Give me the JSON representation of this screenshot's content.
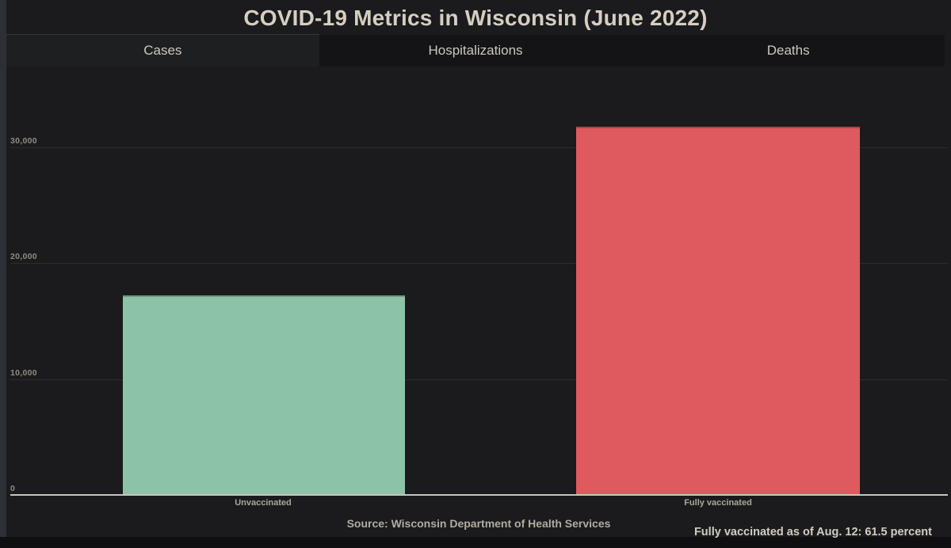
{
  "header": {
    "title": "COVID-19 Metrics in Wisconsin (June 2022)"
  },
  "tabs": {
    "items": [
      {
        "label": "Cases",
        "active": true
      },
      {
        "label": "Hospitalizations",
        "active": false
      },
      {
        "label": "Deaths",
        "active": false
      }
    ]
  },
  "chart_data": {
    "type": "bar",
    "title": "COVID-19 Metrics in Wisconsin (June 2022)",
    "active_metric": "Cases",
    "categories": [
      "Unvaccinated",
      "Fully vaccinated"
    ],
    "values": [
      17200,
      31800
    ],
    "bar_colors": [
      "#8cc3a7",
      "#de5a5e"
    ],
    "xlabel": "",
    "ylabel": "",
    "ylim": [
      0,
      36000
    ],
    "grid": true,
    "yticks": [
      {
        "value": 0,
        "label": "0"
      },
      {
        "value": 10000,
        "label": "10,000"
      },
      {
        "value": 20000,
        "label": "20,000"
      },
      {
        "value": 30000,
        "label": "30,000"
      }
    ]
  },
  "footer": {
    "source": "Source: Wisconsin Department of Health Services",
    "vaccination_note": "Fully vaccinated as of Aug. 12: 61.5 percent"
  },
  "colors": {
    "background": "#1b1b1d",
    "tab_active_bg": "#1e1f21",
    "tab_inactive_bg": "#141417",
    "title_text": "#d5cec2",
    "axis_line": "#c9c4ba",
    "gridline": "#2d2d30",
    "unvaccinated_bar": "#8cc3a7",
    "fully_vaccinated_bar": "#de5a5e"
  }
}
